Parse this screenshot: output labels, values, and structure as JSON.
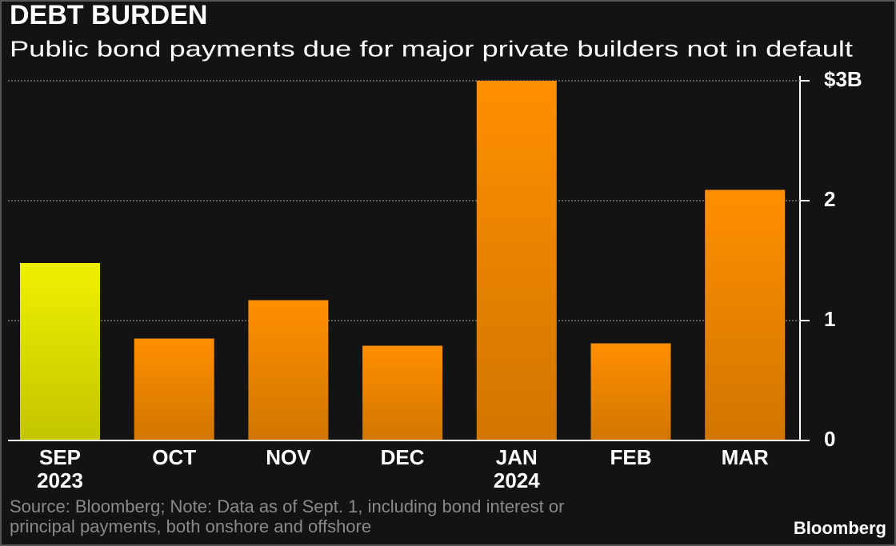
{
  "chart_data": {
    "type": "bar",
    "title": "DEBT BURDEN",
    "subtitle": "Public bond payments due for major private builders not in default",
    "categories": [
      "SEP 2023",
      "OCT",
      "NOV",
      "DEC",
      "JAN 2024",
      "FEB",
      "MAR"
    ],
    "values": [
      1.48,
      0.85,
      1.17,
      0.79,
      3.0,
      0.81,
      2.09
    ],
    "colors": [
      "#eef000",
      "#ff8f00",
      "#ff8f00",
      "#ff8f00",
      "#ff8f00",
      "#ff8f00",
      "#ff8f00"
    ],
    "ylim": [
      0,
      3
    ],
    "yticks": [
      0,
      1,
      2,
      {
        "value": 3,
        "label": "$3B"
      }
    ],
    "grid": true,
    "note": [
      "Source: Bloomberg; Note: Data as of Sept. 1, including bond interest or",
      "principal payments, both onshore and offshore"
    ],
    "brand": "Bloomberg"
  }
}
